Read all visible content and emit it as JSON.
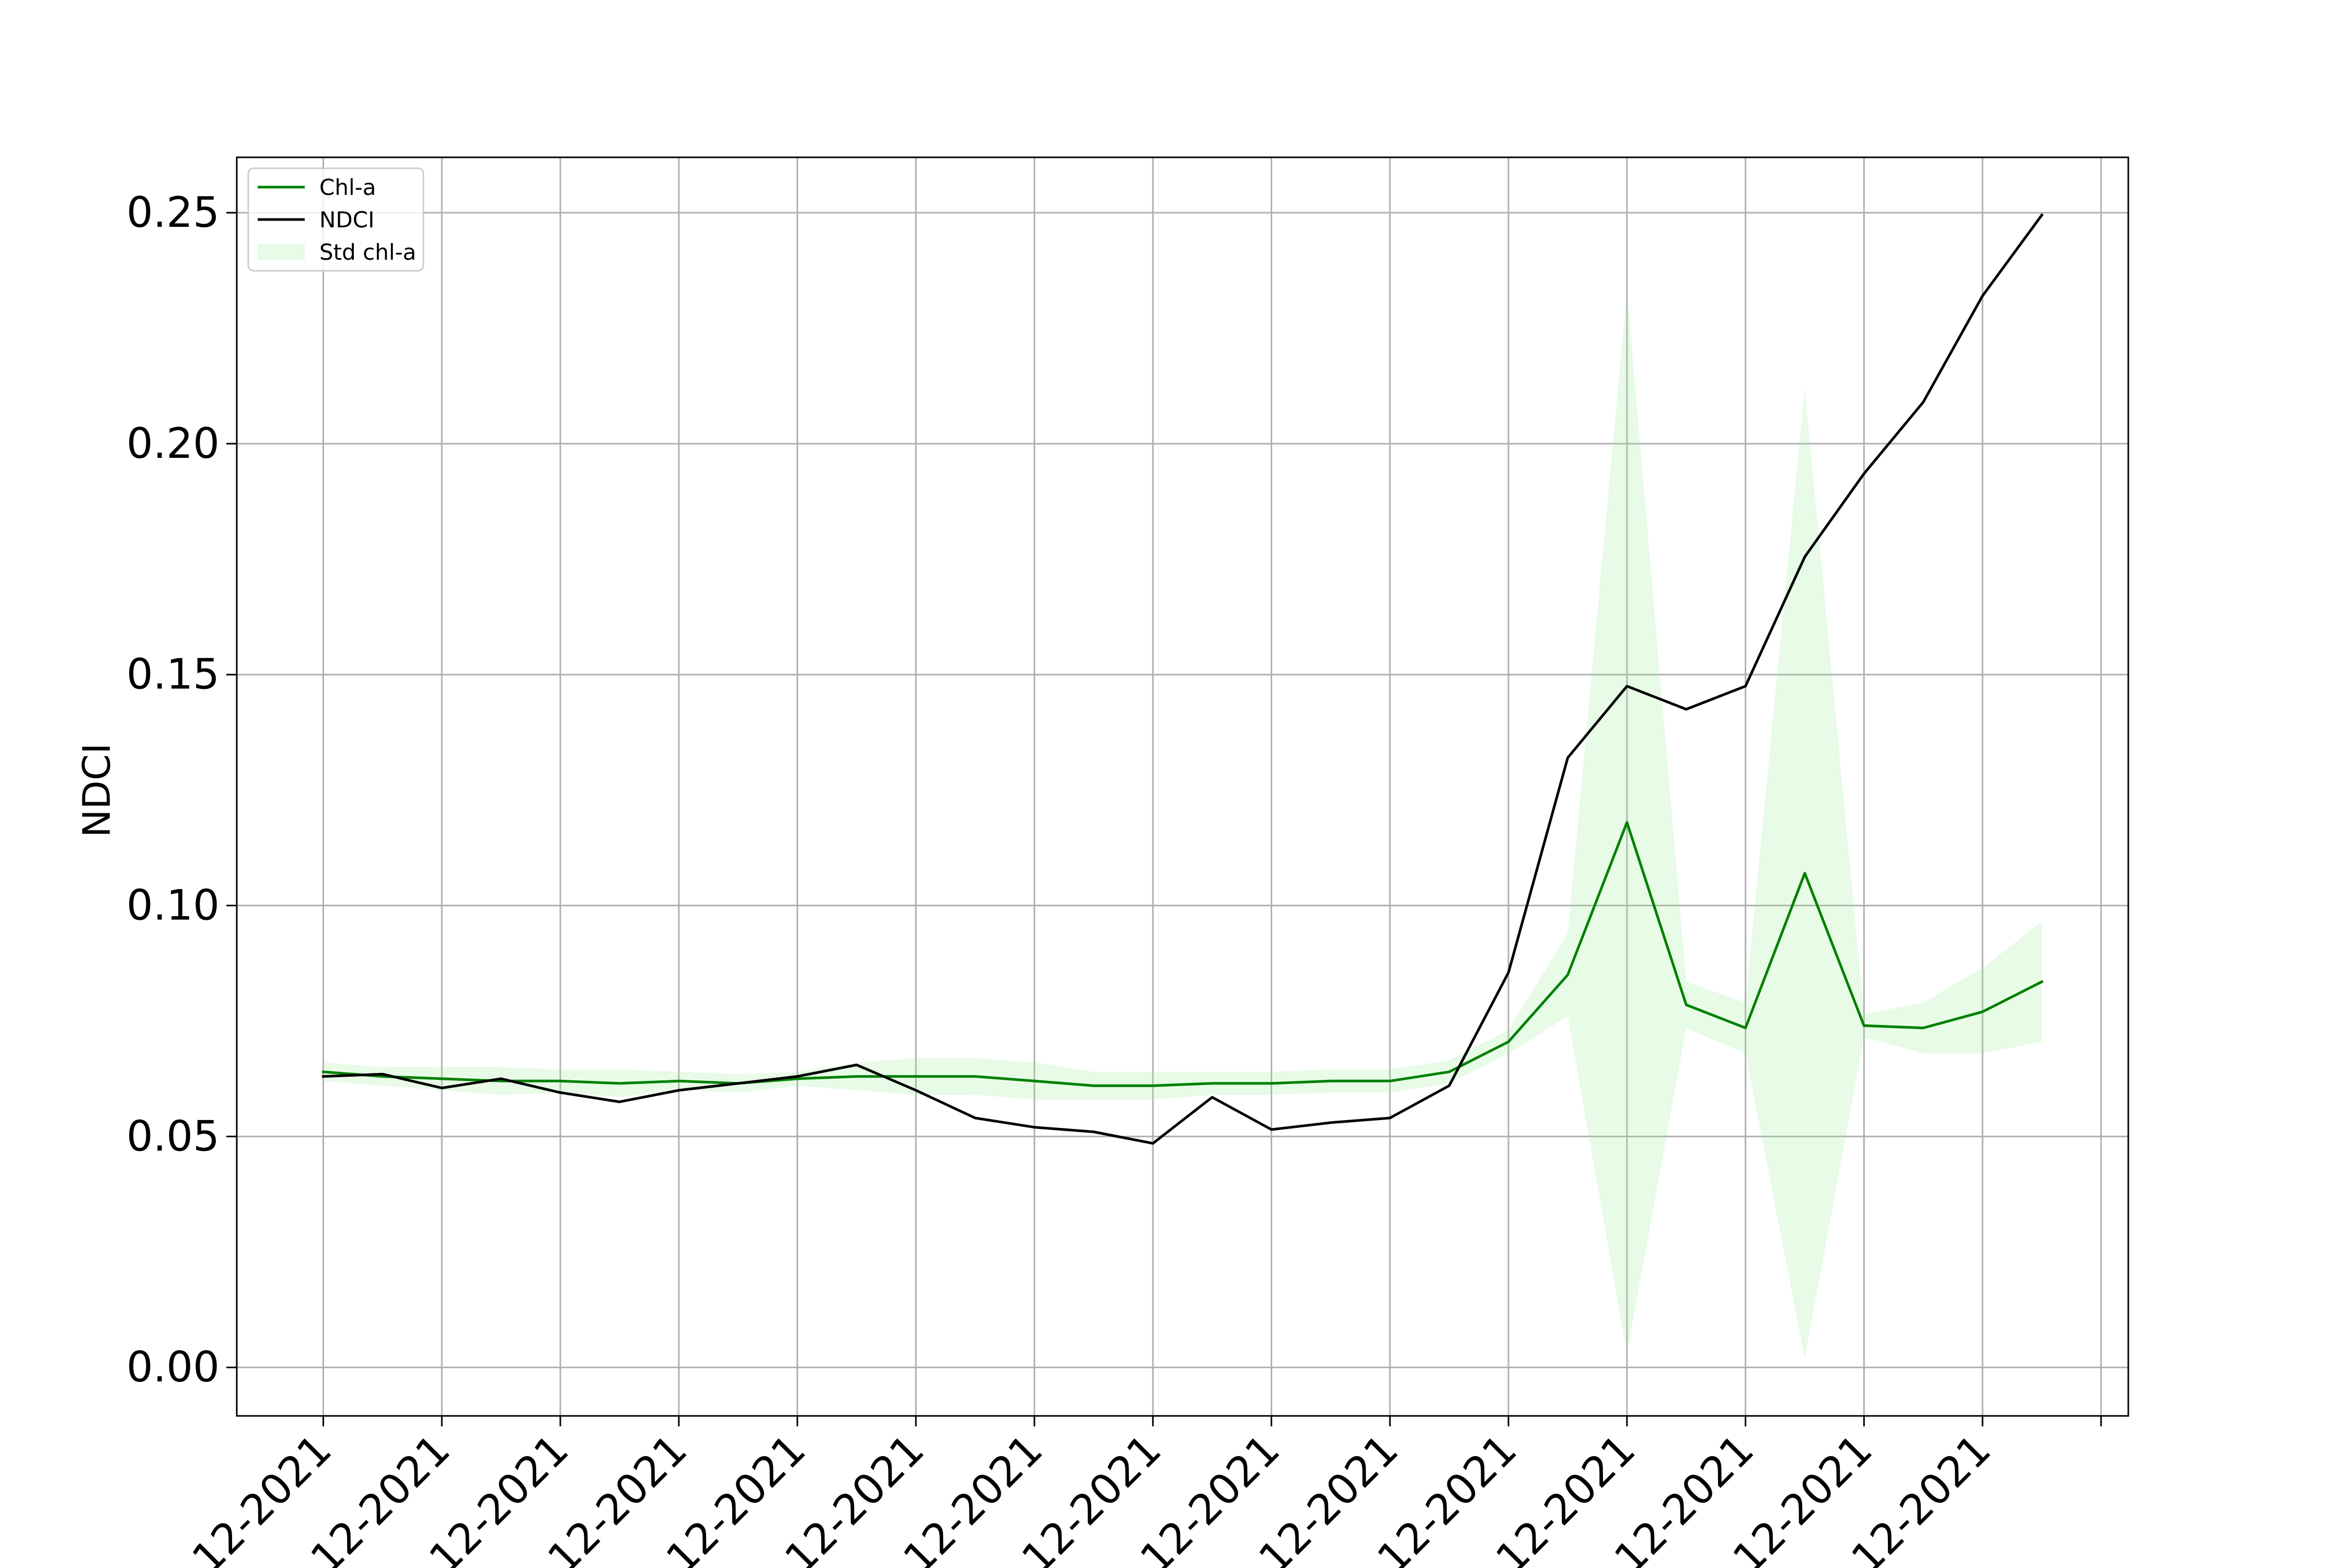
{
  "chart_data": {
    "type": "line",
    "title": "",
    "xlabel": "",
    "ylabel": "NDCI",
    "ylim": [
      -0.0105,
      0.262
    ],
    "xlim": [
      -0.73,
      15.23
    ],
    "yticks": [
      0.0,
      0.05,
      0.1,
      0.15,
      0.2,
      0.25
    ],
    "ytick_labels": [
      "0.00",
      "0.05",
      "0.10",
      "0.15",
      "0.20",
      "0.25"
    ],
    "xticks": [
      0,
      1,
      2,
      3,
      4,
      5,
      6,
      7,
      8,
      9,
      10,
      11,
      12,
      13,
      14,
      15
    ],
    "xtick_labels": [
      "12-2021",
      "12-2021",
      "12-2021",
      "12-2021",
      "12-2021",
      "12-2021",
      "12-2021",
      "12-2021",
      "12-2021",
      "12-2021",
      "12-2021",
      "12-2021",
      "12-2021",
      "12-2021",
      "12-2021",
      ""
    ],
    "grid": true,
    "legend_position": "upper-left",
    "legend": [
      "Chl-a",
      "NDCI",
      "Std chl-a"
    ],
    "x": [
      0,
      0.5,
      1,
      1.5,
      2,
      2.5,
      3,
      3.5,
      4,
      4.5,
      5,
      5.5,
      6,
      6.5,
      7,
      7.5,
      8,
      8.5,
      9,
      9.5,
      10,
      10.5,
      11,
      11.5,
      12,
      12.5,
      13,
      13.5,
      14,
      14.5
    ],
    "series": [
      {
        "name": "Chl-a",
        "color": "#008000",
        "values": [
          0.064,
          0.063,
          0.0625,
          0.062,
          0.062,
          0.0615,
          0.062,
          0.0615,
          0.0625,
          0.063,
          0.063,
          0.063,
          0.062,
          0.061,
          0.061,
          0.0615,
          0.0615,
          0.062,
          0.062,
          0.064,
          0.0705,
          0.085,
          0.118,
          0.0785,
          0.0735,
          0.107,
          0.074,
          0.0735,
          0.077,
          0.0835
        ]
      },
      {
        "name": "NDCI",
        "color": "#000000",
        "values": [
          0.063,
          0.0635,
          0.0605,
          0.0625,
          0.0595,
          0.0575,
          0.06,
          0.0615,
          0.063,
          0.0655,
          0.06,
          0.054,
          0.052,
          0.051,
          0.0485,
          0.0585,
          0.0515,
          0.053,
          0.054,
          0.061,
          0.0855,
          0.132,
          0.1475,
          0.1425,
          0.1475,
          0.1755,
          0.1935,
          0.209,
          0.232,
          0.2495
        ]
      }
    ],
    "band": {
      "name": "Std chl-a",
      "color": "#90ee90",
      "upper": [
        0.066,
        0.065,
        0.065,
        0.065,
        0.0645,
        0.0645,
        0.064,
        0.0635,
        0.064,
        0.066,
        0.067,
        0.067,
        0.066,
        0.064,
        0.064,
        0.064,
        0.064,
        0.0645,
        0.0645,
        0.0665,
        0.073,
        0.094,
        0.233,
        0.0835,
        0.079,
        0.212,
        0.0765,
        0.079,
        0.0865,
        0.0965
      ],
      "lower": [
        0.062,
        0.061,
        0.06,
        0.059,
        0.0595,
        0.0585,
        0.06,
        0.0595,
        0.061,
        0.06,
        0.059,
        0.059,
        0.058,
        0.058,
        0.058,
        0.059,
        0.059,
        0.0595,
        0.0595,
        0.0615,
        0.068,
        0.076,
        0.003,
        0.0735,
        0.068,
        0.002,
        0.0715,
        0.068,
        0.068,
        0.0705
      ]
    }
  }
}
